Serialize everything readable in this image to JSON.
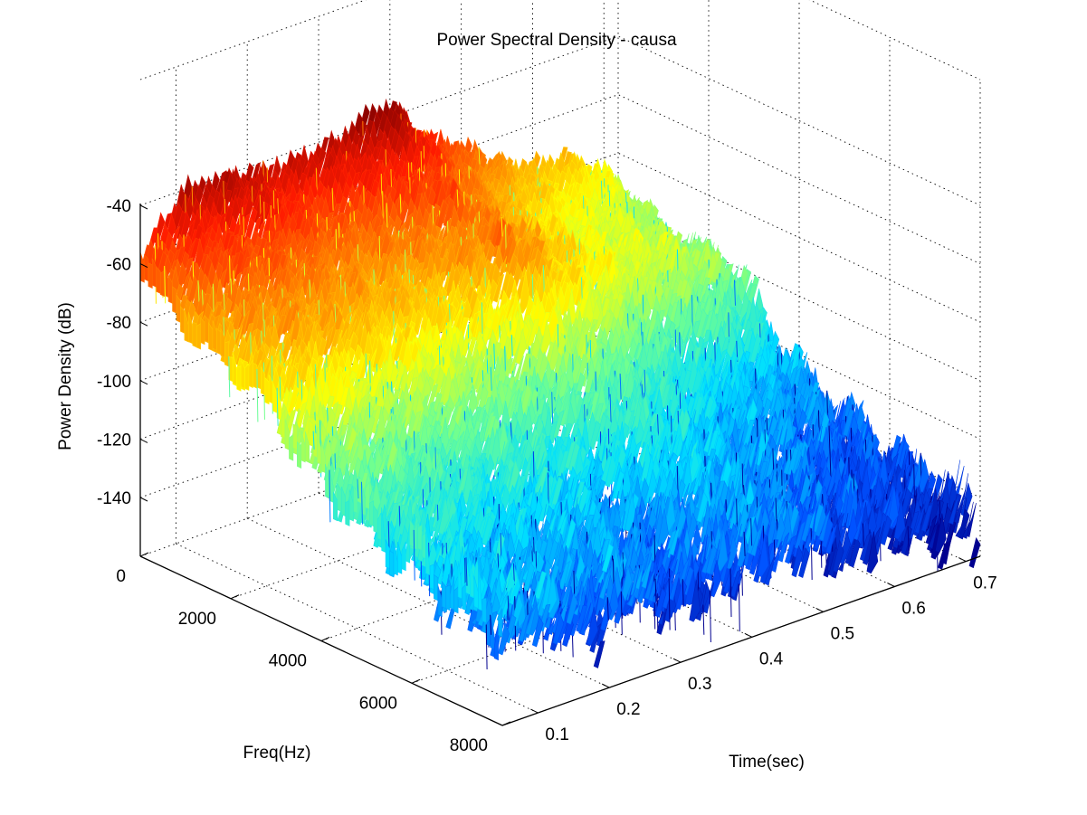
{
  "chart_data": {
    "type": "surface",
    "title": "Power Spectral Density - causa",
    "xlabel": "Freq(Hz)",
    "ylabel": "Time(sec)",
    "zlabel": "Power Density (dB)",
    "freq_ticks": [
      "0",
      "2000",
      "4000",
      "6000",
      "8000"
    ],
    "time_ticks": [
      "0.1",
      "0.2",
      "0.3",
      "0.4",
      "0.5",
      "0.6",
      "0.7"
    ],
    "db_ticks": [
      "-40",
      "-60",
      "-80",
      "-100",
      "-120",
      "-140"
    ],
    "freq_range": [
      0,
      8000
    ],
    "time_range": [
      0.05,
      0.72
    ],
    "db_range": [
      -150,
      -30
    ],
    "grid": true,
    "colormap": "jet",
    "colormap_stops": [
      "#00008f",
      "#0050ff",
      "#00dfff",
      "#70ff90",
      "#ffff00",
      "#ff8c00",
      "#ff1a00",
      "#800000"
    ],
    "surface_profile": {
      "time": [
        0.05,
        0.1,
        0.15,
        0.2,
        0.25,
        0.3,
        0.35,
        0.4,
        0.45,
        0.5,
        0.55,
        0.6,
        0.65,
        0.7,
        0.72
      ],
      "low_freq_peak_db": [
        -55,
        -40,
        -38,
        -38,
        -42,
        -40,
        -36,
        -35,
        -48,
        -58,
        -66,
        -72,
        -74,
        -82,
        -88
      ],
      "high_freq_floor_db": [
        -120,
        -125,
        -128,
        -130,
        -128,
        -132,
        -135,
        -130,
        -128,
        -132,
        -136,
        -138,
        -140,
        -142,
        -144
      ]
    }
  }
}
